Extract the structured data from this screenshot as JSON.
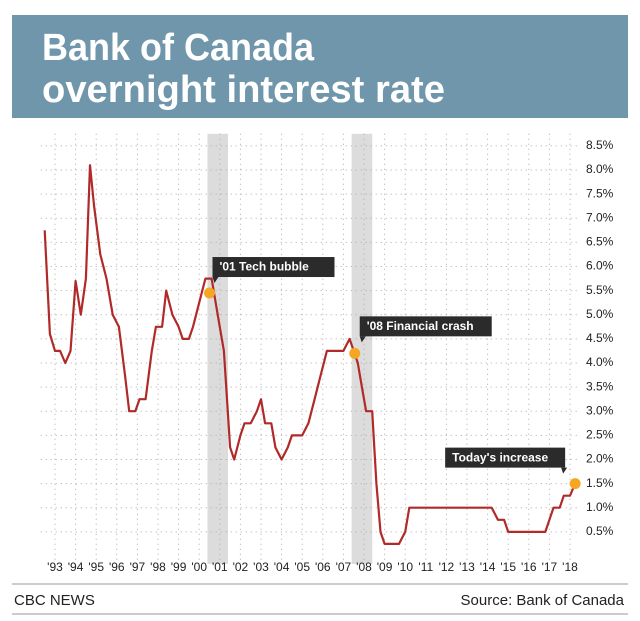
{
  "chart_data": {
    "type": "line",
    "title_lines": [
      "Bank of Canada",
      "overnight interest rate"
    ],
    "source": "Source: Bank of Canada",
    "publisher": "CBC NEWS",
    "xlim": [
      1993,
      2019
    ],
    "ylim": [
      0,
      8.75
    ],
    "xticks": [
      {
        "value": 1993.5,
        "label": "'93"
      },
      {
        "value": 1994.5,
        "label": "'94"
      },
      {
        "value": 1995.5,
        "label": "'95"
      },
      {
        "value": 1996.5,
        "label": "'96"
      },
      {
        "value": 1997.5,
        "label": "'97"
      },
      {
        "value": 1998.5,
        "label": "'98"
      },
      {
        "value": 1999.5,
        "label": "'99"
      },
      {
        "value": 2000.5,
        "label": "'00"
      },
      {
        "value": 2001.5,
        "label": "'01"
      },
      {
        "value": 2002.5,
        "label": "'02"
      },
      {
        "value": 2003.5,
        "label": "'03"
      },
      {
        "value": 2004.5,
        "label": "'04"
      },
      {
        "value": 2005.5,
        "label": "'05"
      },
      {
        "value": 2006.5,
        "label": "'06"
      },
      {
        "value": 2007.5,
        "label": "'07"
      },
      {
        "value": 2008.5,
        "label": "'08"
      },
      {
        "value": 2009.5,
        "label": "'09"
      },
      {
        "value": 2010.5,
        "label": "'10"
      },
      {
        "value": 2011.5,
        "label": "'11"
      },
      {
        "value": 2012.5,
        "label": "'12"
      },
      {
        "value": 2013.5,
        "label": "'13"
      },
      {
        "value": 2014.5,
        "label": "'14"
      },
      {
        "value": 2015.5,
        "label": "'15"
      },
      {
        "value": 2016.5,
        "label": "'16"
      },
      {
        "value": 2017.5,
        "label": "'17"
      },
      {
        "value": 2018.5,
        "label": "'18"
      }
    ],
    "yticks": [
      {
        "value": 0.5,
        "label": "0.5%"
      },
      {
        "value": 1,
        "label": "1.0%"
      },
      {
        "value": 1.5,
        "label": "1.5%"
      },
      {
        "value": 2,
        "label": "2.0%"
      },
      {
        "value": 2.5,
        "label": "2.5%"
      },
      {
        "value": 3,
        "label": "3.0%"
      },
      {
        "value": 3.5,
        "label": "3.5%"
      },
      {
        "value": 4,
        "label": "4.0%"
      },
      {
        "value": 4.5,
        "label": "4.5%"
      },
      {
        "value": 5,
        "label": "5.0%"
      },
      {
        "value": 5.5,
        "label": "5.5%"
      },
      {
        "value": 6,
        "label": "6.0%"
      },
      {
        "value": 6.5,
        "label": "6.5%"
      },
      {
        "value": 7,
        "label": "7.0%"
      },
      {
        "value": 7.5,
        "label": "7.5%"
      },
      {
        "value": 8,
        "label": "8.0%"
      },
      {
        "value": 8.5,
        "label": "8.5%"
      }
    ],
    "grid": true,
    "highlight_color": "#dcdcdc",
    "highlights": [
      [
        2000.9,
        2001.9
      ],
      [
        2007.9,
        2008.9
      ]
    ],
    "series": [
      {
        "color": "#b02a2a",
        "x": [
          1993.0,
          1993.25,
          1993.5,
          1993.75,
          1994.0,
          1994.25,
          1994.5,
          1994.75,
          1995.0,
          1995.2,
          1995.4,
          1995.7,
          1996.0,
          1996.3,
          1996.6,
          1996.9,
          1997.1,
          1997.4,
          1997.6,
          1997.9,
          1998.2,
          1998.4,
          1998.7,
          1998.9,
          1999.2,
          1999.5,
          1999.7,
          2000.0,
          2000.2,
          2000.5,
          2000.8,
          2001.1,
          2001.4,
          2001.7,
          2002.0,
          2002.2,
          2002.5,
          2002.7,
          2003.0,
          2003.3,
          2003.5,
          2003.7,
          2004.0,
          2004.2,
          2004.5,
          2004.8,
          2005.0,
          2005.5,
          2005.8,
          2006.1,
          2006.4,
          2006.7,
          2007.0,
          2007.5,
          2007.8,
          2008.0,
          2008.2,
          2008.4,
          2008.6,
          2008.9,
          2009.1,
          2009.3,
          2009.5,
          2010.2,
          2010.5,
          2010.7,
          2011.0,
          2012.0,
          2013.0,
          2014.0,
          2014.7,
          2015.0,
          2015.3,
          2015.5,
          2016.0,
          2017.0,
          2017.3,
          2017.5,
          2017.7,
          2018.0,
          2018.2,
          2018.5,
          2018.75
        ],
        "values": [
          6.75,
          4.6,
          4.25,
          4.25,
          4.0,
          4.25,
          5.7,
          5.0,
          5.75,
          8.1,
          7.25,
          6.25,
          5.75,
          5.0,
          4.75,
          3.75,
          3.0,
          3.0,
          3.25,
          3.25,
          4.25,
          4.75,
          4.75,
          5.5,
          5.0,
          4.75,
          4.5,
          4.5,
          4.75,
          5.25,
          5.75,
          5.75,
          5.0,
          4.25,
          2.25,
          2.0,
          2.5,
          2.75,
          2.75,
          3.0,
          3.25,
          2.75,
          2.75,
          2.25,
          2.0,
          2.25,
          2.5,
          2.5,
          2.75,
          3.25,
          3.75,
          4.25,
          4.25,
          4.25,
          4.5,
          4.25,
          4.0,
          3.5,
          3.0,
          3.0,
          1.5,
          0.5,
          0.25,
          0.25,
          0.5,
          1.0,
          1.0,
          1.0,
          1.0,
          1.0,
          1.0,
          0.75,
          0.75,
          0.5,
          0.5,
          0.5,
          0.5,
          0.75,
          1.0,
          1.0,
          1.25,
          1.25,
          1.5
        ]
      }
    ],
    "annotation_color": "#f5a623",
    "annotations": [
      {
        "text": "'01 Tech bubble",
        "x": 2001.0,
        "y": 5.45
      },
      {
        "text": "'08 Financial crash",
        "x": 2008.05,
        "y": 4.2
      },
      {
        "text": "Today's increase",
        "x": 2018.75,
        "y": 1.5
      }
    ]
  }
}
